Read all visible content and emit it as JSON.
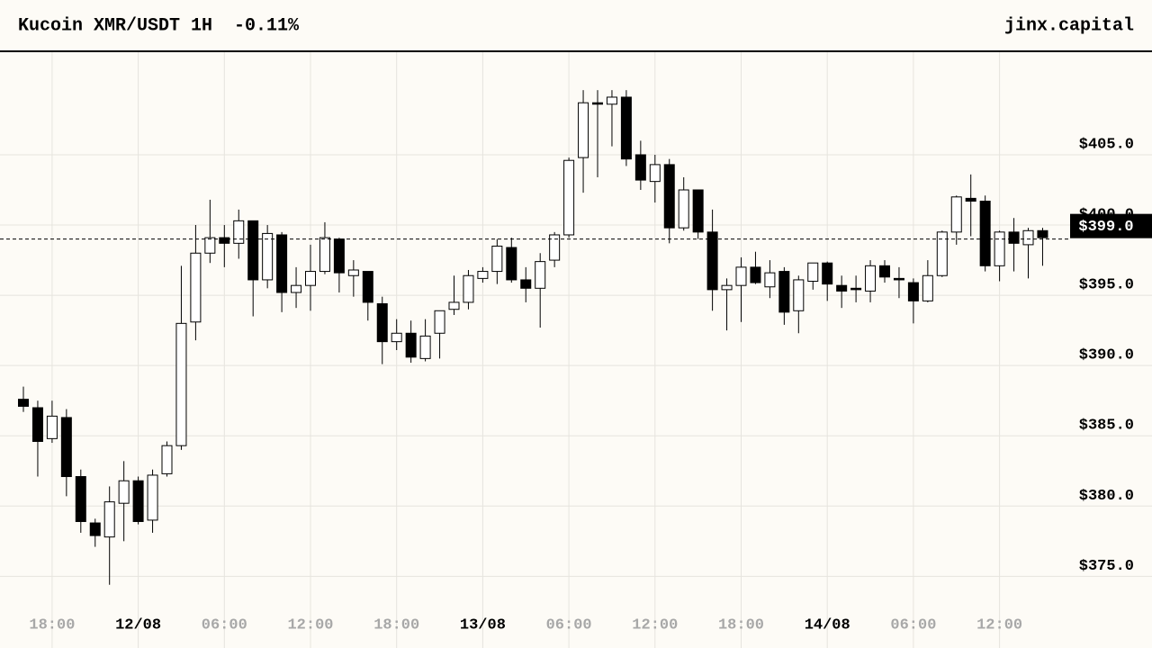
{
  "chart_data": {
    "type": "candlestick",
    "title": "Kucoin XMR/USDT 1H",
    "change": "-0.11%",
    "brand": "jinx.capital",
    "open": [
      387.6,
      387.0,
      384.8,
      386.3,
      382.1,
      378.8,
      377.8,
      380.2,
      381.8,
      379.0,
      382.3,
      384.3,
      393.1,
      398.0,
      399.1,
      398.7,
      400.3,
      396.1,
      399.3,
      395.2,
      395.7,
      396.7,
      399.0,
      396.4,
      396.7,
      394.4,
      391.7,
      392.3,
      390.5,
      392.3,
      394.0,
      394.5,
      396.2,
      396.7,
      398.4,
      396.1,
      395.5,
      397.5,
      399.3,
      404.8,
      408.7,
      408.6,
      409.1,
      405.0,
      403.1,
      404.3,
      399.8,
      402.5,
      399.5,
      395.4,
      395.7,
      397.0,
      395.6,
      396.7,
      393.9,
      396.0,
      397.3,
      395.7,
      395.5,
      395.3,
      397.1,
      396.2,
      395.9,
      394.6,
      396.4,
      399.5,
      401.9,
      401.7,
      397.1,
      399.5,
      398.6,
      399.6
    ],
    "high": [
      388.5,
      387.5,
      387.5,
      386.9,
      382.6,
      379.1,
      381.4,
      383.2,
      382.1,
      382.6,
      384.6,
      397.1,
      400.0,
      401.8,
      400.0,
      401.1,
      400.3,
      400.0,
      399.5,
      397.0,
      398.6,
      400.2,
      399.1,
      397.5,
      396.7,
      394.9,
      393.3,
      393.2,
      393.3,
      393.9,
      396.4,
      396.8,
      397.0,
      399.0,
      399.1,
      397.0,
      398.0,
      399.5,
      404.8,
      409.6,
      409.6,
      409.6,
      409.6,
      406.0,
      405.0,
      404.7,
      403.4,
      402.5,
      401.1,
      396.2,
      397.7,
      398.1,
      397.5,
      397.0,
      396.4,
      397.3,
      397.4,
      396.4,
      396.4,
      397.5,
      397.5,
      397.0,
      396.2,
      397.5,
      399.6,
      402.1,
      403.6,
      402.1,
      399.6,
      400.5,
      399.8,
      399.8
    ],
    "low": [
      386.7,
      382.1,
      384.5,
      380.7,
      378.1,
      377.1,
      374.4,
      377.5,
      378.7,
      378.1,
      382.1,
      384.0,
      391.8,
      397.3,
      397.0,
      397.6,
      393.5,
      395.5,
      393.8,
      394.1,
      393.9,
      396.5,
      395.2,
      394.9,
      393.2,
      390.1,
      391.1,
      390.2,
      390.3,
      390.5,
      393.6,
      394.0,
      395.9,
      395.8,
      395.9,
      394.5,
      392.7,
      397.0,
      399.1,
      402.3,
      403.4,
      405.6,
      404.2,
      402.5,
      401.6,
      398.7,
      399.6,
      399.0,
      393.9,
      392.5,
      393.1,
      395.8,
      394.8,
      392.9,
      392.3,
      395.4,
      394.6,
      394.1,
      394.5,
      394.5,
      395.9,
      394.8,
      393.0,
      394.5,
      396.3,
      398.6,
      399.2,
      396.7,
      396.0,
      396.7,
      396.2,
      397.1
    ],
    "close": [
      387.1,
      384.6,
      386.4,
      382.1,
      378.9,
      377.9,
      380.3,
      381.8,
      378.9,
      382.2,
      384.3,
      393.0,
      398.0,
      399.1,
      398.7,
      400.3,
      396.1,
      399.4,
      395.2,
      395.7,
      396.7,
      399.1,
      396.6,
      396.8,
      394.5,
      391.7,
      392.3,
      390.6,
      392.1,
      393.9,
      394.5,
      396.4,
      396.7,
      398.5,
      396.1,
      395.5,
      397.4,
      399.3,
      404.6,
      408.7,
      408.6,
      409.1,
      404.7,
      403.2,
      404.3,
      399.8,
      402.5,
      399.5,
      395.4,
      395.7,
      397.0,
      395.9,
      396.6,
      393.8,
      396.1,
      397.3,
      395.8,
      395.3,
      395.4,
      397.1,
      396.3,
      396.1,
      394.6,
      396.4,
      399.5,
      402.0,
      401.7,
      397.1,
      399.5,
      398.7,
      399.6,
      399.1
    ],
    "up_color": "#ffffff",
    "down_color": "#000000",
    "last_price": {
      "value": 399.0,
      "label": "$399.0"
    },
    "ylim": [
      369.9,
      412.3
    ],
    "yticks": [
      {
        "value": 375,
        "label": "$375.0"
      },
      {
        "value": 380,
        "label": "$380.0"
      },
      {
        "value": 385,
        "label": "$385.0"
      },
      {
        "value": 390,
        "label": "$390.0"
      },
      {
        "value": 395,
        "label": "$395.0"
      },
      {
        "value": 400,
        "label": "$400.0"
      },
      {
        "value": 405,
        "label": "$405.0"
      }
    ],
    "xlim": [
      -1.63,
      78.62
    ],
    "xticks": [
      {
        "value": 2,
        "label": "18:00"
      },
      {
        "value": 8,
        "label": "12/08"
      },
      {
        "value": 14,
        "label": "06:00"
      },
      {
        "value": 20,
        "label": "12:00"
      },
      {
        "value": 26,
        "label": "18:00"
      },
      {
        "value": 32,
        "label": "13/08"
      },
      {
        "value": 38,
        "label": "06:00"
      },
      {
        "value": 44,
        "label": "12:00"
      },
      {
        "value": 50,
        "label": "18:00"
      },
      {
        "value": 56,
        "label": "14/08"
      },
      {
        "value": 62,
        "label": "06:00"
      },
      {
        "value": 68,
        "label": "12:00"
      }
    ],
    "grid": true
  }
}
